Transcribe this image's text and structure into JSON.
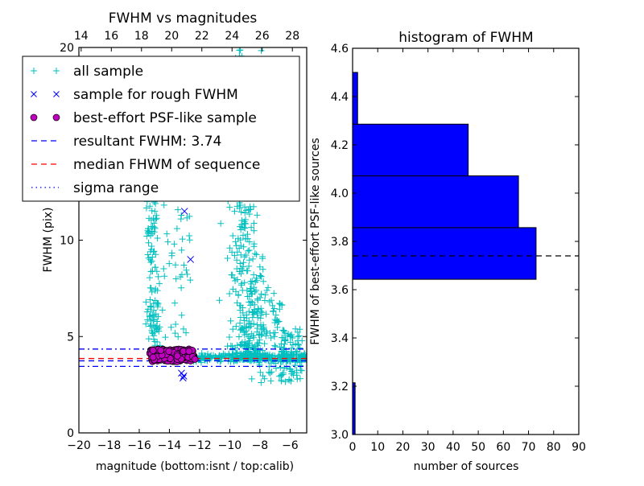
{
  "chart_data": [
    {
      "type": "scatter",
      "title": "FWHM vs magnitudes",
      "xlabel": "magnitude (bottom:isnt / top:calib)",
      "ylabel": "FWHM (pix)",
      "xlim": [
        -20,
        -4.9
      ],
      "ylim": [
        0,
        20
      ],
      "x_ticks": [
        -20,
        -18,
        -16,
        -14,
        -12,
        -10,
        -8,
        -6
      ],
      "x_tick_labels": [
        "−20",
        "−18",
        "−16",
        "−14",
        "−12",
        "−10",
        "−8",
        "−6"
      ],
      "y_ticks": [
        0,
        5,
        10,
        20
      ],
      "y_tick_labels": [
        "0",
        "5",
        "10",
        "20"
      ],
      "top_axis": {
        "offset": 33.85,
        "ticks": [
          14,
          16,
          18,
          20,
          22,
          24,
          26,
          28
        ],
        "tick_labels": [
          "14",
          "16",
          "18",
          "20",
          "22",
          "24",
          "26",
          "28"
        ]
      },
      "grid": false,
      "legend": {
        "placement": "top-left",
        "entries": [
          {
            "label": "all sample",
            "marker": "plus",
            "color": "#00bfbf"
          },
          {
            "label": "sample for rough FWHM",
            "marker": "x",
            "color": "#0000ff"
          },
          {
            "label": "best-effort PSF-like sample",
            "marker": "circle",
            "color": "#bf00bf"
          },
          {
            "label": "resultant FWHM: 3.74",
            "marker": "dashed-line",
            "color": "#0000ff"
          },
          {
            "label": "median FHWM of sequence",
            "marker": "dashed-line",
            "color": "#ff0000"
          },
          {
            "label": "sigma range",
            "marker": "dashdot-line",
            "color": "#0000ff"
          }
        ]
      },
      "hlines": [
        {
          "name": "resultant FWHM",
          "y": 3.74,
          "color": "#0000ff",
          "style": "dashed"
        },
        {
          "name": "median FHWM of sequence",
          "y": 3.86,
          "color": "#ff0000",
          "style": "dashed"
        },
        {
          "name": "sigma upper",
          "y": 4.35,
          "color": "#0000ff",
          "style": "dashdot"
        },
        {
          "name": "sigma lower",
          "y": 3.45,
          "color": "#0000ff",
          "style": "dashdot"
        }
      ],
      "series": [
        {
          "name": "all sample",
          "marker": "plus",
          "color": "#00bfbf",
          "clusters": [
            {
              "description": "bright stellar branch",
              "x_range": [
                -15.4,
                -14.6
              ],
              "y_range": [
                4.2,
                12.5
              ],
              "count": 90
            },
            {
              "description": "sparse bright scatter",
              "x_range": [
                -15.6,
                -12.6
              ],
              "y_range": [
                4.5,
                13
              ],
              "count": 70
            },
            {
              "description": "faint galaxy cloud",
              "x_range": [
                -10.4,
                -7.6
              ],
              "y_range": [
                3.8,
                20
              ],
              "count": 420
            },
            {
              "description": "faint wing",
              "x_range": [
                -8.8,
                -5.2
              ],
              "y_range": [
                2.6,
                7.5
              ],
              "count": 160
            },
            {
              "description": "stellar sequence band",
              "x_range": [
                -12.5,
                -4.9
              ],
              "y_range": [
                3.5,
                4.3
              ],
              "count": 260
            }
          ]
        },
        {
          "name": "sample for rough FWHM",
          "marker": "x",
          "color": "#0000ff",
          "points": [
            [
              -13.0,
              11.5
            ],
            [
              -12.6,
              9.0
            ],
            [
              -13.2,
              3.1
            ],
            [
              -13.05,
              2.95
            ],
            [
              -13.1,
              2.85
            ]
          ]
        },
        {
          "name": "best-effort PSF-like sample",
          "marker": "circle",
          "color": "#bf00bf",
          "clusters": [
            {
              "description": "PSF-like stars",
              "x_range": [
                -15.3,
                -12.3
              ],
              "y_range": [
                3.7,
                4.35
              ],
              "count": 190
            }
          ]
        }
      ]
    },
    {
      "type": "bar",
      "orientation": "horizontal",
      "title": "histogram of FWHM",
      "xlabel": "number of sources",
      "ylabel": "FWHM of best-effort PSF-like sources",
      "xlim": [
        0,
        90
      ],
      "ylim": [
        3.0,
        4.6
      ],
      "x_ticks": [
        0,
        10,
        20,
        30,
        40,
        50,
        60,
        70,
        80,
        90
      ],
      "y_ticks": [
        3.0,
        3.2,
        3.4,
        3.6,
        3.8,
        4.0,
        4.2,
        4.4,
        4.6
      ],
      "y_tick_labels": [
        "3.0",
        "3.2",
        "3.4",
        "3.6",
        "3.8",
        "4.0",
        "4.2",
        "4.4",
        "4.6"
      ],
      "bin_edges": [
        3.0,
        3.2143,
        3.4286,
        3.6429,
        3.8571,
        4.0714,
        4.2857,
        4.5
      ],
      "values": [
        1,
        0,
        0,
        73,
        66,
        46,
        2
      ],
      "bar_color": "#0000ff",
      "grid": false,
      "hline": {
        "y": 3.74,
        "color": "#000000",
        "style": "dashed"
      }
    }
  ]
}
